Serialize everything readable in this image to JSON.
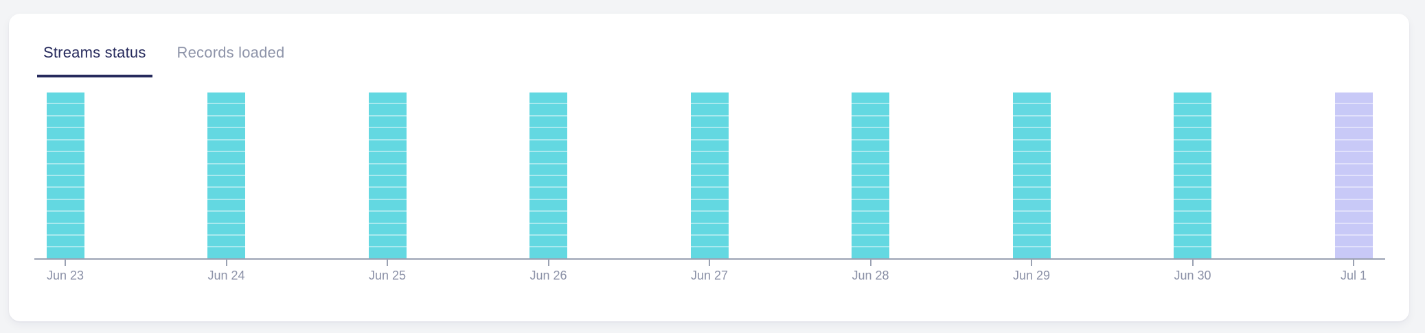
{
  "tabs": [
    {
      "id": "streams-status",
      "label": "Streams status",
      "active": true
    },
    {
      "id": "records-loaded",
      "label": "Records loaded",
      "active": false
    }
  ],
  "chart_data": {
    "type": "bar",
    "title": "",
    "xlabel": "",
    "ylabel": "",
    "categories": [
      "Jun 23",
      "Jun 24",
      "Jun 25",
      "Jun 26",
      "Jun 27",
      "Jun 28",
      "Jun 29",
      "Jun 30",
      "Jul 1"
    ],
    "series": [
      {
        "name": "Streams status",
        "values": [
          14,
          14,
          14,
          14,
          14,
          14,
          14,
          14,
          14
        ]
      }
    ],
    "segments_per_bar": [
      14,
      14,
      14,
      14,
      14,
      14,
      14,
      14,
      14
    ],
    "bar_statuses": [
      "synced",
      "synced",
      "synced",
      "synced",
      "synced",
      "synced",
      "synced",
      "synced",
      "pending"
    ],
    "ylim": [
      0,
      14
    ],
    "grid": false,
    "legend": null,
    "colors": {
      "synced": "#63d8e1",
      "synced_divider": "#a9e9ee",
      "pending": "#c8c9f7",
      "pending_divider": "#e1e1fb"
    }
  },
  "theme": {
    "page_bg": "#f3f4f6",
    "card_bg": "#ffffff",
    "tab_active_color": "#262a5c",
    "tab_inactive_color": "#8e94a9",
    "axis_color": "#9aa1b2",
    "tick_label_color": "#8b91a7"
  }
}
